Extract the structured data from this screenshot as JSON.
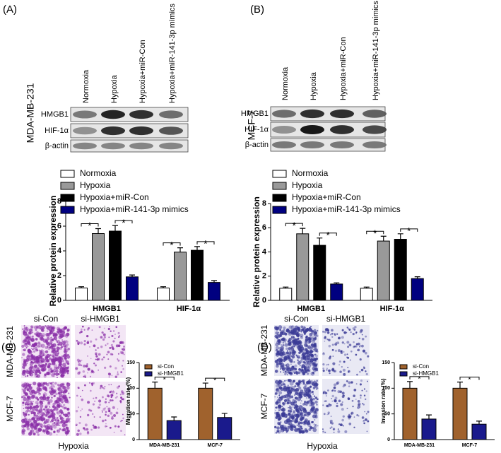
{
  "chart_data": [
    {
      "type": "bar",
      "y_label": "Relative protein expression",
      "categories": [
        "HMGB1",
        "HIF-1α"
      ],
      "series": [
        {
          "name": "Normoxia",
          "color": "#ffffff",
          "values": [
            1.0,
            1.0
          ],
          "errors": [
            0.1,
            0.1
          ]
        },
        {
          "name": "Hypoxia",
          "color": "#999999",
          "values": [
            5.4,
            3.9
          ],
          "errors": [
            0.4,
            0.35
          ]
        },
        {
          "name": "Hypoxia+miR-Con",
          "color": "#000000",
          "values": [
            5.6,
            4.05
          ],
          "errors": [
            0.45,
            0.3
          ]
        },
        {
          "name": "Hypoxia+miR-141-3p mimics",
          "color": "#000080",
          "values": [
            1.9,
            1.45
          ],
          "errors": [
            0.15,
            0.15
          ]
        }
      ],
      "ylim": [
        0,
        8
      ],
      "yticks": [
        0,
        2,
        4,
        6,
        8
      ],
      "legend": "top-left",
      "significance": [
        {
          "category": 0,
          "series": [
            0,
            1
          ],
          "label": "*"
        },
        {
          "category": 0,
          "series": [
            2,
            3
          ],
          "label": "*"
        },
        {
          "category": 1,
          "series": [
            0,
            1
          ],
          "label": "*"
        },
        {
          "category": 1,
          "series": [
            2,
            3
          ],
          "label": "*"
        }
      ]
    },
    {
      "type": "bar",
      "y_label": "Relative protein expression",
      "categories": [
        "HMGB1",
        "HIF-1α"
      ],
      "series": [
        {
          "name": "Normoxia",
          "color": "#ffffff",
          "values": [
            1.0,
            1.0
          ],
          "errors": [
            0.1,
            0.1
          ]
        },
        {
          "name": "Hypoxia",
          "color": "#999999",
          "values": [
            5.5,
            4.9
          ],
          "errors": [
            0.45,
            0.4
          ]
        },
        {
          "name": "Hypoxia+miR-Con",
          "color": "#000000",
          "values": [
            4.55,
            5.05
          ],
          "errors": [
            0.6,
            0.45
          ]
        },
        {
          "name": "Hypoxia+miR-141-3p mimics",
          "color": "#000080",
          "values": [
            1.35,
            1.8
          ],
          "errors": [
            0.1,
            0.15
          ]
        }
      ],
      "ylim": [
        0,
        8
      ],
      "yticks": [
        0,
        2,
        4,
        6,
        8
      ],
      "legend": "top-left",
      "significance": [
        {
          "category": 0,
          "series": [
            0,
            1
          ],
          "label": "*"
        },
        {
          "category": 0,
          "series": [
            2,
            3
          ],
          "label": "*"
        },
        {
          "category": 1,
          "series": [
            0,
            1
          ],
          "label": "*"
        },
        {
          "category": 1,
          "series": [
            2,
            3
          ],
          "label": "*"
        }
      ]
    },
    {
      "type": "bar",
      "y_label": "Migration rate (%)",
      "categories": [
        "MDA-MB-231",
        "MCF-7"
      ],
      "series": [
        {
          "name": "si-Con",
          "color": "#a0622d",
          "values": [
            100,
            100
          ],
          "errors": [
            12,
            10
          ]
        },
        {
          "name": "si-HMGB1",
          "color": "#1a1a8c",
          "values": [
            37,
            43
          ],
          "errors": [
            7,
            8
          ]
        }
      ],
      "ylim": [
        0,
        150
      ],
      "yticks": [
        0,
        50,
        100,
        150
      ],
      "legend": "top-left",
      "significance": [
        {
          "category": 0,
          "series": [
            0,
            1
          ],
          "label": "*"
        },
        {
          "category": 1,
          "series": [
            0,
            1
          ],
          "label": "*"
        }
      ]
    },
    {
      "type": "bar",
      "y_label": "Invasion rate (%)",
      "categories": [
        "MDA-MB-231",
        "MCF-7"
      ],
      "series": [
        {
          "name": "si-Con",
          "color": "#a0622d",
          "values": [
            100,
            100
          ],
          "errors": [
            13,
            12
          ]
        },
        {
          "name": "si-HMGB1",
          "color": "#1a1a8c",
          "values": [
            40,
            30
          ],
          "errors": [
            8,
            6
          ]
        }
      ],
      "ylim": [
        0,
        150
      ],
      "yticks": [
        0,
        50,
        100,
        150
      ],
      "legend": "top-left",
      "significance": [
        {
          "category": 0,
          "series": [
            0,
            1
          ],
          "label": "*"
        },
        {
          "category": 1,
          "series": [
            0,
            1
          ],
          "label": "*"
        }
      ]
    }
  ],
  "panels": [
    {
      "label": "(A)",
      "cell_line": "MDA-MB-231",
      "lanes": [
        "Normoxia",
        "Hypoxia",
        "Hypoxia+miR-Con",
        "Hypoxia+miR-141-3p mimics"
      ],
      "bands": [
        "HMGB1",
        "HIF-1α",
        "β-actin"
      ]
    },
    {
      "label": "(B)",
      "cell_line": "MCF-7",
      "lanes": [
        "Normoxia",
        "Hypoxia",
        "Hypoxia+miR-Con",
        "Hypoxia+miR-141-3p mimics"
      ],
      "bands": [
        "HMGB1",
        "HIF-1α",
        "β-actin"
      ]
    },
    {
      "label": "(C)",
      "columns": [
        "si-Con",
        "si-HMGB1"
      ],
      "rows": [
        "MDA-MB-231",
        "MCF-7"
      ],
      "condition": "Hypoxia"
    },
    {
      "label": "(D)",
      "columns": [
        "si-Con",
        "si-HMGB1"
      ],
      "rows": [
        "MDA-MB-231",
        "MCF-7"
      ],
      "condition": "Hypoxia"
    }
  ]
}
